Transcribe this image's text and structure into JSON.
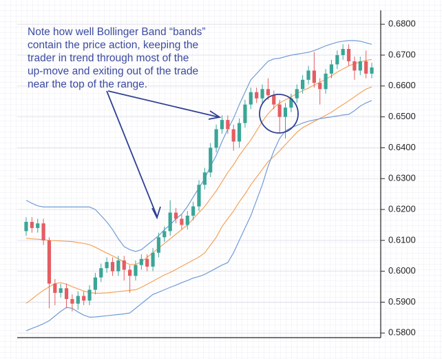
{
  "chart_data": {
    "type": "candlestick",
    "annotation": [
      "Note how well Bollinger Band “bands”",
      "contain the price action, keeping the",
      "trader in trend through most of the",
      "up-move and exiting out of the trade",
      "near the top of the range."
    ],
    "ylim": [
      0.5785,
      0.6845
    ],
    "yticks": [
      {
        "value": 0.58,
        "label": "0.5800"
      },
      {
        "value": 0.59,
        "label": "0.5900"
      },
      {
        "value": 0.6,
        "label": "0.6000"
      },
      {
        "value": 0.61,
        "label": "0.6100"
      },
      {
        "value": 0.62,
        "label": "0.6200"
      },
      {
        "value": 0.63,
        "label": "0.6300"
      },
      {
        "value": 0.64,
        "label": "0.6400"
      },
      {
        "value": 0.65,
        "label": "0.6500"
      },
      {
        "value": 0.66,
        "label": "0.6600"
      },
      {
        "value": 0.67,
        "label": "0.6700"
      },
      {
        "value": 0.68,
        "label": "0.6800"
      }
    ],
    "grid": true,
    "up_color": "#3aa597",
    "down_color": "#e45d62",
    "open": [
      0.613,
      0.616,
      0.614,
      0.6155,
      0.61,
      0.596,
      0.593,
      0.5945,
      0.591,
      0.5895,
      0.592,
      0.5905,
      0.594,
      0.598,
      0.601,
      0.603,
      0.6,
      0.6035,
      0.6005,
      0.5985,
      0.602,
      0.604,
      0.6015,
      0.606,
      0.611,
      0.613,
      0.619,
      0.617,
      0.615,
      0.618,
      0.621,
      0.628,
      0.632,
      0.64,
      0.646,
      0.649,
      0.646,
      0.642,
      0.648,
      0.654,
      0.658,
      0.656,
      0.659,
      0.657,
      0.654,
      0.65,
      0.653,
      0.656,
      0.659,
      0.662,
      0.665,
      0.661,
      0.659,
      0.664,
      0.667,
      0.67,
      0.672,
      0.668,
      0.665,
      0.668,
      0.664
    ],
    "close": [
      0.616,
      0.614,
      0.6155,
      0.61,
      0.596,
      0.593,
      0.5945,
      0.591,
      0.5895,
      0.592,
      0.5905,
      0.594,
      0.598,
      0.601,
      0.603,
      0.6,
      0.6035,
      0.6005,
      0.5985,
      0.602,
      0.604,
      0.6015,
      0.606,
      0.611,
      0.613,
      0.619,
      0.617,
      0.615,
      0.618,
      0.621,
      0.628,
      0.632,
      0.64,
      0.646,
      0.649,
      0.646,
      0.642,
      0.648,
      0.654,
      0.658,
      0.656,
      0.659,
      0.657,
      0.654,
      0.65,
      0.653,
      0.656,
      0.659,
      0.662,
      0.665,
      0.661,
      0.659,
      0.664,
      0.667,
      0.67,
      0.672,
      0.668,
      0.665,
      0.668,
      0.664,
      0.666
    ],
    "high": [
      0.6175,
      0.6175,
      0.617,
      0.617,
      0.611,
      0.5975,
      0.596,
      0.596,
      0.5925,
      0.5935,
      0.5935,
      0.5955,
      0.5995,
      0.6025,
      0.6045,
      0.6045,
      0.605,
      0.605,
      0.602,
      0.6035,
      0.6055,
      0.6055,
      0.6075,
      0.6125,
      0.6145,
      0.623,
      0.6205,
      0.6185,
      0.6195,
      0.6225,
      0.6295,
      0.6335,
      0.6415,
      0.6475,
      0.6505,
      0.6505,
      0.6475,
      0.6495,
      0.6555,
      0.6595,
      0.6595,
      0.6605,
      0.6625,
      0.6585,
      0.6555,
      0.6545,
      0.6575,
      0.6605,
      0.6635,
      0.6665,
      0.671,
      0.6625,
      0.6655,
      0.6685,
      0.6715,
      0.6735,
      0.6735,
      0.6695,
      0.6695,
      0.6715,
      0.6675
    ],
    "low": [
      0.6115,
      0.6125,
      0.6125,
      0.6085,
      0.588,
      0.589,
      0.5915,
      0.588,
      0.587,
      0.5875,
      0.589,
      0.589,
      0.5925,
      0.5965,
      0.5995,
      0.5985,
      0.5985,
      0.597,
      0.593,
      0.597,
      0.6005,
      0.6,
      0.6,
      0.6045,
      0.6095,
      0.6115,
      0.6155,
      0.6135,
      0.6135,
      0.6165,
      0.6195,
      0.6265,
      0.6305,
      0.6385,
      0.6445,
      0.6445,
      0.639,
      0.64,
      0.6465,
      0.6525,
      0.6545,
      0.6545,
      0.6555,
      0.6525,
      0.645,
      0.643,
      0.6515,
      0.6545,
      0.6575,
      0.6605,
      0.6595,
      0.654,
      0.6575,
      0.6625,
      0.6655,
      0.6685,
      0.6665,
      0.662,
      0.6635,
      0.6625,
      0.6625
    ],
    "series": [
      {
        "color": "#6f9bd6",
        "values": [
          0.623,
          0.622,
          0.6212,
          0.6208,
          0.6208,
          0.6208,
          0.6208,
          0.6208,
          0.6208,
          0.6208,
          0.6208,
          0.6208,
          0.62,
          0.618,
          0.616,
          0.6135,
          0.6105,
          0.608,
          0.607,
          0.6064,
          0.607,
          0.6085,
          0.61,
          0.6115,
          0.6135,
          0.615,
          0.617,
          0.6185,
          0.621,
          0.624,
          0.627,
          0.63,
          0.634,
          0.6375,
          0.642,
          0.646,
          0.6495,
          0.654,
          0.658,
          0.662,
          0.664,
          0.666,
          0.668,
          0.6688,
          0.669,
          0.6695,
          0.67,
          0.6703,
          0.6706,
          0.6709,
          0.6715,
          0.6722,
          0.673,
          0.6736,
          0.6742,
          0.6745,
          0.6747,
          0.6747,
          0.6745,
          0.674,
          0.6735
        ]
      },
      {
        "color": "#f4a259",
        "values": [
          0.6107,
          0.6105,
          0.6104,
          0.6102,
          0.61,
          0.6099,
          0.6098,
          0.6097,
          0.6096,
          0.6093,
          0.609,
          0.6086,
          0.6078,
          0.6068,
          0.6059,
          0.605,
          0.604,
          0.603,
          0.6022,
          0.6022,
          0.603,
          0.6045,
          0.606,
          0.6075,
          0.609,
          0.6105,
          0.612,
          0.6135,
          0.615,
          0.617,
          0.619,
          0.621,
          0.6235,
          0.626,
          0.629,
          0.632,
          0.6345,
          0.6375,
          0.64,
          0.6425,
          0.6455,
          0.6485,
          0.651,
          0.653,
          0.6545,
          0.6555,
          0.6565,
          0.6575,
          0.6585,
          0.6593,
          0.6603,
          0.6612,
          0.6622,
          0.6632,
          0.6645,
          0.6655,
          0.6665,
          0.6672,
          0.6678,
          0.6683,
          0.6686
        ]
      },
      {
        "color": "#f4a259",
        "values": [
          0.5896,
          0.591,
          0.5925,
          0.5938,
          0.595,
          0.596,
          0.5963,
          0.5958,
          0.595,
          0.5943,
          0.5936,
          0.5931,
          0.5929,
          0.5929,
          0.593,
          0.5932,
          0.5934,
          0.5936,
          0.5938,
          0.594,
          0.5948,
          0.5958,
          0.5968,
          0.5978,
          0.5988,
          0.5996,
          0.6006,
          0.6016,
          0.6026,
          0.6036,
          0.6046,
          0.606,
          0.6085,
          0.611,
          0.6145,
          0.617,
          0.6195,
          0.6225,
          0.625,
          0.628,
          0.6305,
          0.633,
          0.6355,
          0.6372,
          0.639,
          0.641,
          0.643,
          0.645,
          0.6465,
          0.6475,
          0.6485,
          0.6495,
          0.6505,
          0.6515,
          0.6528,
          0.654,
          0.6552,
          0.6565,
          0.6578,
          0.659,
          0.6597
        ]
      },
      {
        "color": "#6f9bd6",
        "values": [
          0.5807,
          0.5815,
          0.5822,
          0.583,
          0.584,
          0.5855,
          0.587,
          0.5883,
          0.588,
          0.5868,
          0.5858,
          0.5851,
          0.5852,
          0.5854,
          0.5856,
          0.5858,
          0.586,
          0.5862,
          0.5865,
          0.588,
          0.5895,
          0.591,
          0.5925,
          0.5932,
          0.594,
          0.5948,
          0.5955,
          0.5963,
          0.597,
          0.5978,
          0.5983,
          0.599,
          0.6,
          0.601,
          0.602,
          0.6028,
          0.606,
          0.61,
          0.614,
          0.618,
          0.623,
          0.628,
          0.634,
          0.639,
          0.643,
          0.6455,
          0.6465,
          0.6472,
          0.648,
          0.6486,
          0.649,
          0.6494,
          0.6497,
          0.65,
          0.6503,
          0.6506,
          0.6508,
          0.652,
          0.6535,
          0.6545,
          0.6553
        ]
      }
    ]
  }
}
